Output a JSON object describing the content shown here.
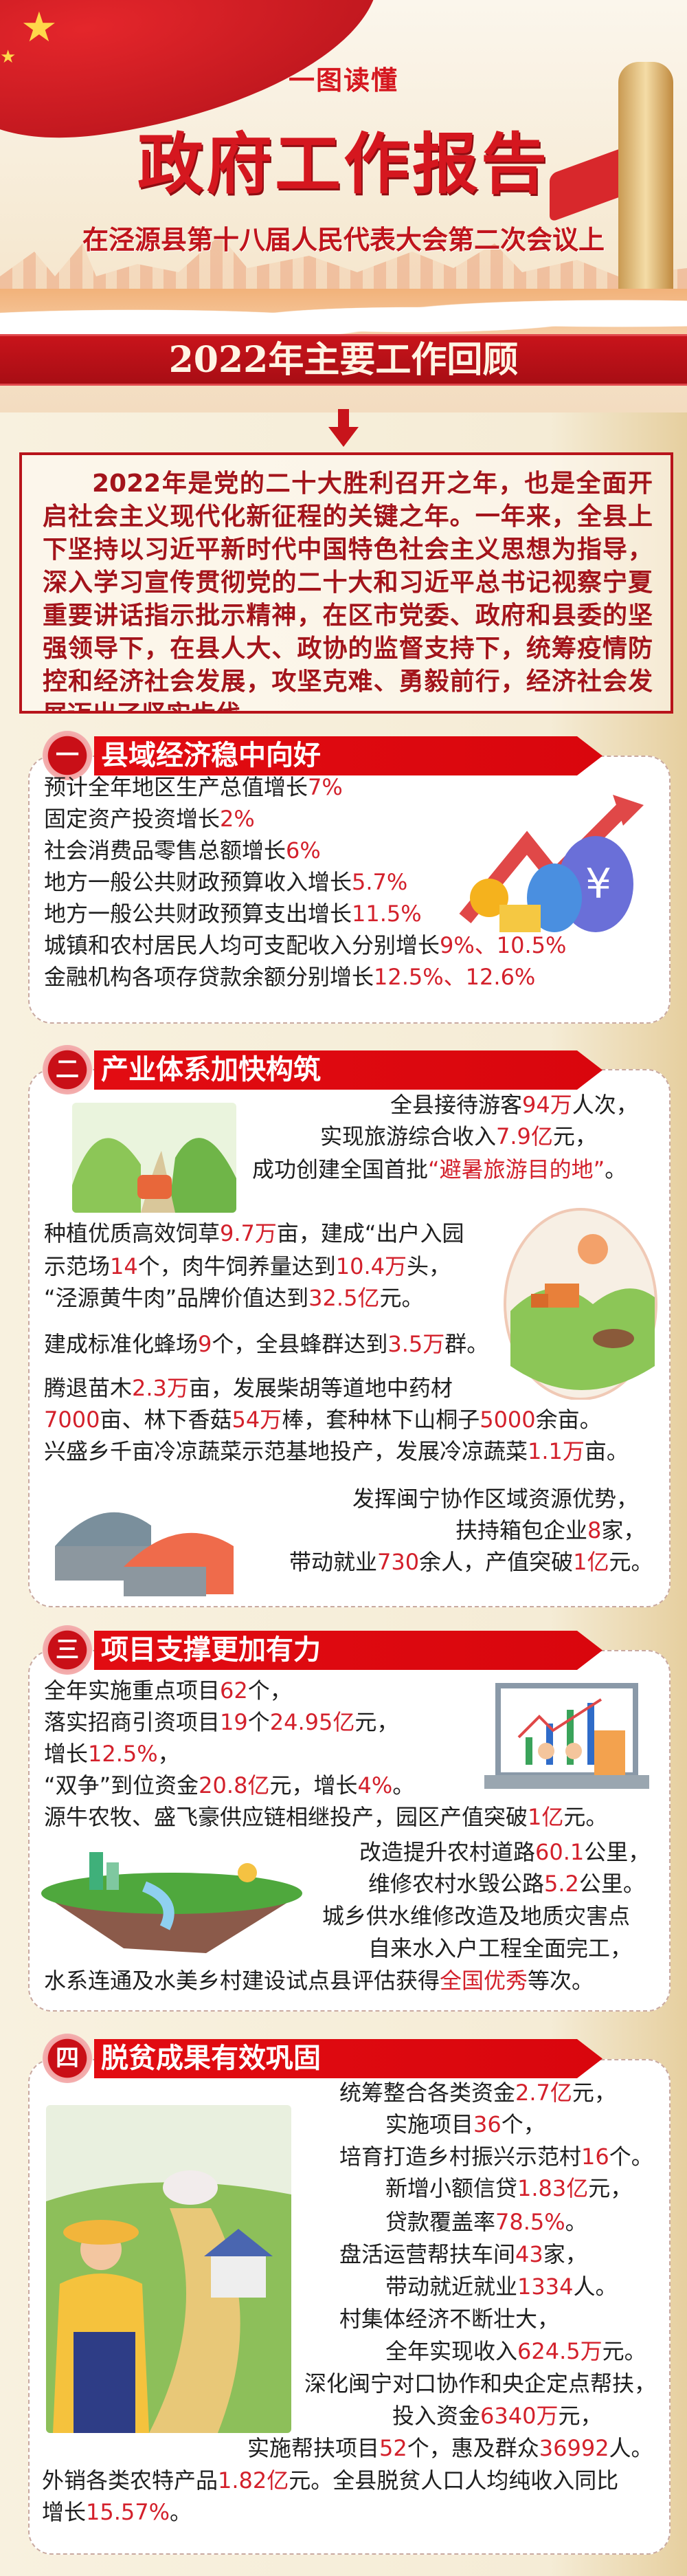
{
  "header": {
    "kicker": "一图读懂",
    "title": "政府工作报告",
    "subtitle": "在泾源县第十八届人民代表大会第二次会议上",
    "banner": "2022年主要工作回顾"
  },
  "intro": "2022年是党的二十大胜利召开之年，也是全面开启社会主义现代化新征程的关键之年。一年来，全县上下坚持以习近平新时代中国特色社会主义思想为指导，深入学习宣传贯彻党的二十大和习近平总书记视察宁夏重要讲话指示批示精神，在区市党委、政府和县委的坚强领导下，在县人大、政协的监督支持下，统筹疫情防控和经济社会发展，攻坚克难、勇毅前行，经济社会发展迈出了坚实步伐。",
  "colors": {
    "primary_red": "#d5171f",
    "highlight": "#d3202b",
    "text": "#1e1e1e",
    "background": "#f5ecd6"
  },
  "sections": [
    {
      "number": "一",
      "title": "县域经济稳中向好",
      "illustration": "money-growth-icon",
      "lines": [
        [
          "预计全年地区生产总值增长",
          "7%"
        ],
        [
          "固定资产投资增长",
          "2%"
        ],
        [
          "社会消费品零售总额增长",
          "6%"
        ],
        [
          "地方一般公共财政预算收入增长",
          "5.7%"
        ],
        [
          "地方一般公共财政预算支出增长",
          "11.5%"
        ],
        [
          "城镇和农村居民人均可支配收入分别增长",
          "9%、10.5%"
        ],
        [
          "金融机构各项存贷款余额分别增长",
          "12.5%、12.6%"
        ]
      ]
    },
    {
      "number": "二",
      "title": "产业体系加快构筑",
      "illustration": "tourism-farm-factory-icons",
      "lines": [
        [
          "全县接待游客",
          "94万",
          "人次，"
        ],
        [
          "实现旅游综合收入",
          "7.9亿",
          "元，"
        ],
        [
          "成功创建全国首批",
          "“避暑旅游目的地”",
          "。"
        ],
        [
          "种植优质高效饲草",
          "9.7万",
          "亩，建成“出户入园"
        ],
        [
          "示范场",
          "14",
          "个，肉牛饲养量达到",
          "10.4万",
          "头，"
        ],
        [
          "“泾源黄牛肉”品牌价值达到",
          "32.5亿",
          "元。"
        ],
        [
          "建成标准化蜂场",
          "9",
          "个，全县蜂群达到",
          "3.5万",
          "群。"
        ],
        [
          "腾退苗木",
          "2.3万",
          "亩，发展柴胡等道地中药材"
        ],
        [
          "",
          "7000",
          "亩、林下香菇",
          "54万",
          "棒，套种林下山桐子",
          "5000",
          "余亩。"
        ],
        [
          "兴盛乡千亩冷凉蔬菜示范基地投产，发展冷凉蔬菜",
          "1.1万",
          "亩。"
        ],
        [
          "发挥闽宁协作区域资源优势，"
        ],
        [
          "扶持箱包企业",
          "8",
          "家，"
        ],
        [
          "带动就业",
          "730",
          "余人，产值突破",
          "1亿",
          "元。"
        ]
      ]
    },
    {
      "number": "三",
      "title": "项目支撑更加有力",
      "illustration": "investment-chart-island-icons",
      "lines": [
        [
          "全年实施重点项目",
          "62",
          "个，"
        ],
        [
          "落实招商引资项目",
          "19",
          "个",
          "24.95亿",
          "元，"
        ],
        [
          "增长",
          "12.5%",
          "，"
        ],
        [
          "“双争”到位资金",
          "20.8亿",
          "元，增长",
          "4%",
          "。"
        ],
        [
          "源牛农牧、盛飞豪供应链相继投产，园区产值突破",
          "1亿",
          "元。"
        ],
        [
          "改造提升农村道路",
          "60.1",
          "公里，"
        ],
        [
          "维修农村水毁公路",
          "5.2",
          "公里。"
        ],
        [
          "城乡供水维修改造及地质灾害点"
        ],
        [
          "自来水入户工程全面完工，"
        ],
        [
          "水系连通及水美乡村建设试点县评估获得",
          "全国优秀",
          "等次。"
        ]
      ]
    },
    {
      "number": "四",
      "title": "脱贫成果有效巩固",
      "illustration": "farmer-village-icon",
      "lines": [
        [
          "统筹整合各类资金",
          "2.7亿",
          "元，"
        ],
        [
          "实施项目",
          "36",
          "个，"
        ],
        [
          "培育打造乡村振兴示范村",
          "16",
          "个。"
        ],
        [
          "新增小额信贷",
          "1.83亿",
          "元，"
        ],
        [
          "贷款覆盖率",
          "78.5%",
          "。"
        ],
        [
          "盘活运营帮扶车间",
          "43",
          "家，"
        ],
        [
          "带动就近就业",
          "1334",
          "人。"
        ],
        [
          "村集体经济不断壮大，"
        ],
        [
          "全年实现收入",
          "624.5万",
          "元。"
        ],
        [
          "深化闽宁对口协作和央企定点帮扶，"
        ],
        [
          "投入资金",
          "6340万",
          "元，"
        ],
        [
          "实施帮扶项目",
          "52",
          "个，惠及群众",
          "36992",
          "人。"
        ],
        [
          "外销各类农特产品",
          "1.82亿",
          "元。全县脱贫人口人均纯收入同比"
        ],
        [
          "增长",
          "15.57%",
          "。"
        ]
      ]
    }
  ]
}
